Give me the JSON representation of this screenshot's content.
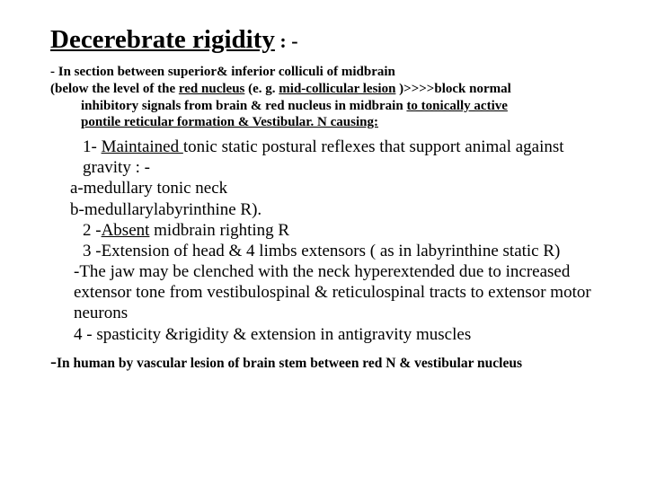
{
  "title": "Decerebrate rigidity",
  "title_colon": " : -",
  "para1_a": "- In section between superior& inferior colliculi of midbrain",
  "para1_b": "(below the level of the ",
  "para1_red": "red nucleus",
  "para1_c": " (e. g. ",
  "para1_mid": "mid-collicular lesion",
  "para1_d": " )>>>>block normal",
  "para1_e": "inhibitory signals from brain & red nucleus in midbrain ",
  "para1_f": "to tonically active",
  "para1_g": "pontile reticular formation &   Vestibular.  N causing:",
  "b1a": "1- ",
  "b1b": "Maintained ",
  "b1c": "tonic static postural reflexes that support animal against gravity : -",
  "b2": "a-medullary tonic neck",
  "b3": "b-medullarylabyrinthine R).",
  "b4a": "2 -",
  "b4b": "Absent",
  "b4c": " midbrain righting R",
  "b5": "3 -Extension of head & 4 limbs extensors ( as in labyrinthine static R)",
  "b6": "-The jaw may be clenched with the neck hyperextended due to increased extensor tone from vestibulospinal & reticulospinal tracts to extensor motor neurons",
  "b7": "4 - spasticity &rigidity & extension in antigravity muscles",
  "last_dash": "-",
  "last": "In human by vascular lesion of brain stem between red N & vestibular nucleus",
  "colors": {
    "text": "#000000",
    "bg": "#ffffff"
  },
  "fonts": {
    "title_pt": 29,
    "sub_pt": 15,
    "body_pt": 19,
    "last_pt": 15.5
  }
}
